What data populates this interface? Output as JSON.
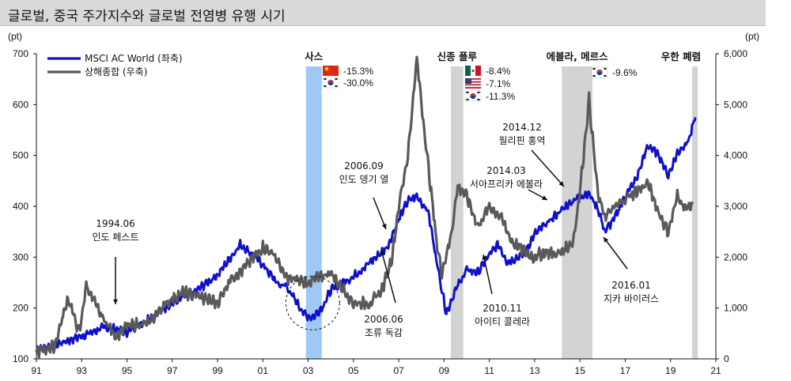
{
  "title": "글로벌, 중국 주가지수와 글로벌 전염병 유행 시기",
  "chart_data": {
    "type": "line",
    "left_unit": "(pt)",
    "right_unit": "(pt)",
    "x_ticks": [
      "91",
      "93",
      "95",
      "97",
      "99",
      "01",
      "03",
      "05",
      "07",
      "09",
      "11",
      "13",
      "15",
      "17",
      "19",
      "21"
    ],
    "x_range": [
      1991,
      2021
    ],
    "y_left_ticks": [
      "100",
      "200",
      "300",
      "400",
      "500",
      "600",
      "700"
    ],
    "y_left_range": [
      100,
      700
    ],
    "y_right_ticks": [
      "0",
      "1,000",
      "2,000",
      "3,000",
      "4,000",
      "5,000",
      "6,000"
    ],
    "y_right_range": [
      0,
      6000
    ],
    "legend_placement": "top-left",
    "series": [
      {
        "name": "MSCI AC World (좌축)",
        "axis": "left",
        "color": "#1010cc",
        "points": [
          [
            1991.0,
            120
          ],
          [
            1992.0,
            130
          ],
          [
            1993.0,
            145
          ],
          [
            1994.0,
            162
          ],
          [
            1994.6,
            158
          ],
          [
            1995.0,
            153
          ],
          [
            1996.0,
            180
          ],
          [
            1997.0,
            210
          ],
          [
            1998.0,
            232
          ],
          [
            1999.0,
            265
          ],
          [
            2000.0,
            325
          ],
          [
            2000.7,
            300
          ],
          [
            2001.0,
            285
          ],
          [
            2001.7,
            245
          ],
          [
            2002.0,
            245
          ],
          [
            2002.5,
            210
          ],
          [
            2002.9,
            185
          ],
          [
            2003.2,
            182
          ],
          [
            2003.6,
            200
          ],
          [
            2004.0,
            235
          ],
          [
            2005.0,
            262
          ],
          [
            2006.0,
            300
          ],
          [
            2006.5,
            320
          ],
          [
            2007.0,
            375
          ],
          [
            2007.4,
            410
          ],
          [
            2007.8,
            420
          ],
          [
            2008.3,
            390
          ],
          [
            2008.7,
            285
          ],
          [
            2009.1,
            190
          ],
          [
            2009.5,
            235
          ],
          [
            2010.0,
            275
          ],
          [
            2010.5,
            270
          ],
          [
            2011.0,
            305
          ],
          [
            2011.4,
            325
          ],
          [
            2011.8,
            290
          ],
          [
            2012.5,
            305
          ],
          [
            2013.0,
            345
          ],
          [
            2014.0,
            385
          ],
          [
            2014.5,
            405
          ],
          [
            2015.0,
            420
          ],
          [
            2015.4,
            425
          ],
          [
            2015.8,
            395
          ],
          [
            2016.1,
            350
          ],
          [
            2016.5,
            375
          ],
          [
            2017.0,
            420
          ],
          [
            2017.5,
            455
          ],
          [
            2018.0,
            520
          ],
          [
            2018.5,
            500
          ],
          [
            2018.9,
            460
          ],
          [
            2019.3,
            505
          ],
          [
            2019.8,
            530
          ],
          [
            2020.1,
            575
          ]
        ]
      },
      {
        "name": "상해종합 (우축)",
        "axis": "right",
        "color": "#595959",
        "points": [
          [
            1991.0,
            130
          ],
          [
            1991.8,
            250
          ],
          [
            1992.4,
            1200
          ],
          [
            1992.9,
            500
          ],
          [
            1993.2,
            1450
          ],
          [
            1993.8,
            900
          ],
          [
            1994.5,
            450
          ],
          [
            1995.0,
            650
          ],
          [
            1996.0,
            700
          ],
          [
            1996.5,
            1000
          ],
          [
            1997.0,
            1200
          ],
          [
            1997.5,
            1300
          ],
          [
            1998.0,
            1250
          ],
          [
            1999.0,
            1100
          ],
          [
            1999.6,
            1600
          ],
          [
            2000.0,
            1700
          ],
          [
            2001.0,
            2200
          ],
          [
            2001.5,
            2050
          ],
          [
            2002.0,
            1600
          ],
          [
            2003.0,
            1500
          ],
          [
            2004.0,
            1700
          ],
          [
            2005.0,
            1100
          ],
          [
            2005.8,
            1100
          ],
          [
            2006.3,
            1400
          ],
          [
            2006.7,
            2000
          ],
          [
            2007.0,
            3000
          ],
          [
            2007.4,
            4000
          ],
          [
            2007.8,
            5900
          ],
          [
            2008.2,
            4200
          ],
          [
            2008.7,
            2200
          ],
          [
            2008.9,
            1700
          ],
          [
            2009.3,
            2400
          ],
          [
            2009.6,
            3400
          ],
          [
            2010.0,
            3200
          ],
          [
            2010.5,
            2600
          ],
          [
            2011.0,
            3000
          ],
          [
            2011.5,
            2800
          ],
          [
            2012.0,
            2300
          ],
          [
            2012.9,
            2000
          ],
          [
            2013.5,
            2100
          ],
          [
            2014.0,
            2050
          ],
          [
            2014.7,
            2300
          ],
          [
            2015.0,
            3300
          ],
          [
            2015.4,
            5100
          ],
          [
            2015.8,
            3200
          ],
          [
            2016.1,
            2800
          ],
          [
            2016.6,
            3000
          ],
          [
            2017.0,
            3150
          ],
          [
            2017.5,
            3300
          ],
          [
            2018.0,
            3450
          ],
          [
            2018.5,
            2850
          ],
          [
            2018.9,
            2500
          ],
          [
            2019.3,
            3200
          ],
          [
            2019.7,
            2950
          ],
          [
            2020.0,
            3050
          ]
        ]
      }
    ],
    "shaded_periods": [
      {
        "name": "사스",
        "x": [
          2002.9,
          2003.6
        ],
        "color": "#9fc8f5"
      },
      {
        "name": "신종 플루",
        "x": [
          2009.3,
          2009.85
        ],
        "color": "#d3d3d3"
      },
      {
        "name": "에볼라, 메르스",
        "x": [
          2014.2,
          2015.55
        ],
        "color": "#d3d3d3"
      },
      {
        "name": "우한 폐렴",
        "x": [
          2019.95,
          2020.2
        ],
        "color": "#d3d3d3"
      }
    ],
    "returns": [
      {
        "flag": "china",
        "value": "-15.3%"
      },
      {
        "flag": "korea",
        "value": "-30.0%"
      },
      {
        "flag": "mexico",
        "value": "-8.4%"
      },
      {
        "flag": "usa",
        "value": "-7.1%"
      },
      {
        "flag": "korea",
        "value": "-11.3%"
      },
      {
        "flag": "korea",
        "value": "-9.6%"
      }
    ],
    "annotations": [
      {
        "date": "1994.06",
        "text": "인도 페스트"
      },
      {
        "date": "2006.09",
        "text": "인도 뎅기 열"
      },
      {
        "date": "2006.06",
        "text": "조류 독감"
      },
      {
        "date": "2010.11",
        "text": "아이티 콜레라"
      },
      {
        "date": "2014.03",
        "text": "서아프리카 에볼라"
      },
      {
        "date": "2014.12",
        "text": "필리핀 홍역"
      },
      {
        "date": "2016.01",
        "text": "지카 바이러스"
      }
    ]
  }
}
